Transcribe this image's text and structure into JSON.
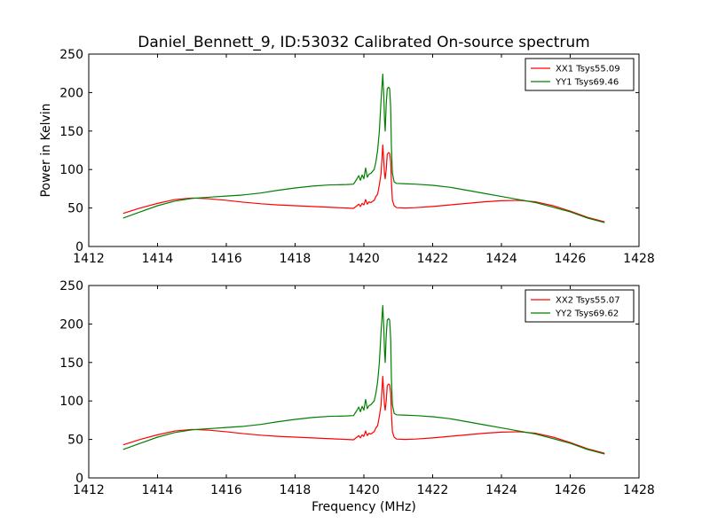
{
  "chart_data": [
    {
      "type": "line",
      "title": "Daniel_Bennett_9, ID:53032 Calibrated On-source spectrum",
      "xlabel": "",
      "ylabel": "Power in Kelvin",
      "xlim": [
        1412,
        1428
      ],
      "ylim": [
        0,
        250
      ],
      "xticks": [
        1412,
        1414,
        1416,
        1418,
        1420,
        1422,
        1424,
        1426,
        1428
      ],
      "yticks": [
        0,
        50,
        100,
        150,
        200,
        250
      ],
      "grid": false,
      "legend_position": "top-right",
      "series": [
        {
          "name": "XX1 Tsys55.09",
          "color": "#ff0000",
          "points": [
            [
              1413.0,
              43
            ],
            [
              1413.5,
              50
            ],
            [
              1414.0,
              56
            ],
            [
              1414.5,
              61
            ],
            [
              1415.0,
              63
            ],
            [
              1415.5,
              62
            ],
            [
              1416.0,
              60
            ],
            [
              1416.5,
              57.5
            ],
            [
              1417.0,
              55.5
            ],
            [
              1417.5,
              54
            ],
            [
              1418.0,
              53
            ],
            [
              1418.5,
              52
            ],
            [
              1419.0,
              51
            ],
            [
              1419.5,
              50
            ],
            [
              1419.7,
              49.5
            ],
            [
              1419.8,
              53
            ],
            [
              1419.85,
              55
            ],
            [
              1419.9,
              52
            ],
            [
              1419.95,
              56
            ],
            [
              1420.0,
              54
            ],
            [
              1420.05,
              61
            ],
            [
              1420.1,
              55
            ],
            [
              1420.15,
              58
            ],
            [
              1420.2,
              57
            ],
            [
              1420.3,
              60
            ],
            [
              1420.35,
              65
            ],
            [
              1420.4,
              68
            ],
            [
              1420.45,
              80
            ],
            [
              1420.5,
              95
            ],
            [
              1420.55,
              132
            ],
            [
              1420.58,
              110
            ],
            [
              1420.6,
              95
            ],
            [
              1420.62,
              88
            ],
            [
              1420.65,
              100
            ],
            [
              1420.68,
              120
            ],
            [
              1420.72,
              122
            ],
            [
              1420.75,
              121
            ],
            [
              1420.78,
              110
            ],
            [
              1420.8,
              85
            ],
            [
              1420.83,
              60
            ],
            [
              1420.88,
              53
            ],
            [
              1420.95,
              50.5
            ],
            [
              1421.2,
              50
            ],
            [
              1421.5,
              50.5
            ],
            [
              1422.0,
              52
            ],
            [
              1422.5,
              54
            ],
            [
              1423.0,
              56
            ],
            [
              1423.5,
              58
            ],
            [
              1424.0,
              59.5
            ],
            [
              1424.5,
              60
            ],
            [
              1425.0,
              58
            ],
            [
              1425.5,
              53
            ],
            [
              1426.0,
              46
            ],
            [
              1426.5,
              38
            ],
            [
              1427.0,
              32
            ]
          ]
        },
        {
          "name": "YY1 Tsys69.46",
          "color": "#008000",
          "points": [
            [
              1413.0,
              37
            ],
            [
              1413.5,
              45
            ],
            [
              1414.0,
              53
            ],
            [
              1414.5,
              59
            ],
            [
              1415.0,
              62.5
            ],
            [
              1415.5,
              64
            ],
            [
              1416.0,
              65.5
            ],
            [
              1416.5,
              67
            ],
            [
              1417.0,
              69.5
            ],
            [
              1417.5,
              73
            ],
            [
              1418.0,
              76
            ],
            [
              1418.5,
              78.5
            ],
            [
              1419.0,
              80
            ],
            [
              1419.5,
              80.5
            ],
            [
              1419.7,
              81
            ],
            [
              1419.8,
              88
            ],
            [
              1419.85,
              92
            ],
            [
              1419.9,
              86
            ],
            [
              1419.95,
              93
            ],
            [
              1420.0,
              88
            ],
            [
              1420.05,
              102
            ],
            [
              1420.1,
              90
            ],
            [
              1420.15,
              94
            ],
            [
              1420.2,
              95
            ],
            [
              1420.3,
              100
            ],
            [
              1420.35,
              110
            ],
            [
              1420.4,
              125
            ],
            [
              1420.45,
              150
            ],
            [
              1420.5,
              190
            ],
            [
              1420.55,
              224
            ],
            [
              1420.58,
              195
            ],
            [
              1420.6,
              165
            ],
            [
              1420.62,
              150
            ],
            [
              1420.65,
              185
            ],
            [
              1420.68,
              205
            ],
            [
              1420.72,
              207
            ],
            [
              1420.75,
              205
            ],
            [
              1420.78,
              180
            ],
            [
              1420.8,
              130
            ],
            [
              1420.83,
              95
            ],
            [
              1420.88,
              84
            ],
            [
              1420.95,
              82
            ],
            [
              1421.2,
              81.5
            ],
            [
              1421.5,
              81
            ],
            [
              1422.0,
              79.5
            ],
            [
              1422.5,
              77
            ],
            [
              1423.0,
              73
            ],
            [
              1423.5,
              69
            ],
            [
              1424.0,
              65
            ],
            [
              1424.5,
              61
            ],
            [
              1425.0,
              57
            ],
            [
              1425.5,
              51
            ],
            [
              1426.0,
              45
            ],
            [
              1426.5,
              37
            ],
            [
              1427.0,
              31
            ]
          ]
        }
      ]
    },
    {
      "type": "line",
      "title": "",
      "xlabel": "Frequency (MHz)",
      "ylabel": "",
      "xlim": [
        1412,
        1428
      ],
      "ylim": [
        0,
        250
      ],
      "xticks": [
        1412,
        1414,
        1416,
        1418,
        1420,
        1422,
        1424,
        1426,
        1428
      ],
      "yticks": [
        0,
        50,
        100,
        150,
        200,
        250
      ],
      "grid": false,
      "legend_position": "top-right",
      "series": [
        {
          "name": "XX2 Tsys55.07",
          "color": "#ff0000",
          "points": [
            [
              1413.0,
              43
            ],
            [
              1413.5,
              50
            ],
            [
              1414.0,
              56
            ],
            [
              1414.5,
              61
            ],
            [
              1415.0,
              63
            ],
            [
              1415.5,
              62
            ],
            [
              1416.0,
              60
            ],
            [
              1416.5,
              57.5
            ],
            [
              1417.0,
              55.5
            ],
            [
              1417.5,
              54
            ],
            [
              1418.0,
              53
            ],
            [
              1418.5,
              52
            ],
            [
              1419.0,
              51
            ],
            [
              1419.5,
              50
            ],
            [
              1419.7,
              49.5
            ],
            [
              1419.8,
              53
            ],
            [
              1419.85,
              55
            ],
            [
              1419.9,
              52
            ],
            [
              1419.95,
              56
            ],
            [
              1420.0,
              54
            ],
            [
              1420.05,
              61
            ],
            [
              1420.1,
              55
            ],
            [
              1420.15,
              58
            ],
            [
              1420.2,
              57
            ],
            [
              1420.3,
              60
            ],
            [
              1420.35,
              65
            ],
            [
              1420.4,
              68
            ],
            [
              1420.45,
              80
            ],
            [
              1420.5,
              95
            ],
            [
              1420.55,
              132
            ],
            [
              1420.58,
              110
            ],
            [
              1420.6,
              95
            ],
            [
              1420.62,
              88
            ],
            [
              1420.65,
              100
            ],
            [
              1420.68,
              120
            ],
            [
              1420.72,
              122
            ],
            [
              1420.75,
              121
            ],
            [
              1420.78,
              110
            ],
            [
              1420.8,
              85
            ],
            [
              1420.83,
              60
            ],
            [
              1420.88,
              53
            ],
            [
              1420.95,
              50.5
            ],
            [
              1421.2,
              50
            ],
            [
              1421.5,
              50.5
            ],
            [
              1422.0,
              52
            ],
            [
              1422.5,
              54
            ],
            [
              1423.0,
              56
            ],
            [
              1423.5,
              58
            ],
            [
              1424.0,
              59.5
            ],
            [
              1424.5,
              60
            ],
            [
              1425.0,
              58
            ],
            [
              1425.5,
              53
            ],
            [
              1426.0,
              46
            ],
            [
              1426.5,
              38
            ],
            [
              1427.0,
              32
            ]
          ]
        },
        {
          "name": "YY2 Tsys69.62",
          "color": "#008000",
          "points": [
            [
              1413.0,
              37
            ],
            [
              1413.5,
              45
            ],
            [
              1414.0,
              53
            ],
            [
              1414.5,
              59
            ],
            [
              1415.0,
              62.5
            ],
            [
              1415.5,
              64
            ],
            [
              1416.0,
              65.5
            ],
            [
              1416.5,
              67
            ],
            [
              1417.0,
              69.5
            ],
            [
              1417.5,
              73
            ],
            [
              1418.0,
              76
            ],
            [
              1418.5,
              78.5
            ],
            [
              1419.0,
              80
            ],
            [
              1419.5,
              80.5
            ],
            [
              1419.7,
              81
            ],
            [
              1419.8,
              88
            ],
            [
              1419.85,
              92
            ],
            [
              1419.9,
              86
            ],
            [
              1419.95,
              93
            ],
            [
              1420.0,
              88
            ],
            [
              1420.05,
              102
            ],
            [
              1420.1,
              90
            ],
            [
              1420.15,
              94
            ],
            [
              1420.2,
              95
            ],
            [
              1420.3,
              100
            ],
            [
              1420.35,
              110
            ],
            [
              1420.4,
              125
            ],
            [
              1420.45,
              150
            ],
            [
              1420.5,
              190
            ],
            [
              1420.55,
              224
            ],
            [
              1420.58,
              195
            ],
            [
              1420.6,
              165
            ],
            [
              1420.62,
              150
            ],
            [
              1420.65,
              185
            ],
            [
              1420.68,
              205
            ],
            [
              1420.72,
              207
            ],
            [
              1420.75,
              205
            ],
            [
              1420.78,
              180
            ],
            [
              1420.8,
              130
            ],
            [
              1420.83,
              95
            ],
            [
              1420.88,
              84
            ],
            [
              1420.95,
              82
            ],
            [
              1421.2,
              81.5
            ],
            [
              1421.5,
              81
            ],
            [
              1422.0,
              79.5
            ],
            [
              1422.5,
              77
            ],
            [
              1423.0,
              73
            ],
            [
              1423.5,
              69
            ],
            [
              1424.0,
              65
            ],
            [
              1424.5,
              61
            ],
            [
              1425.0,
              57
            ],
            [
              1425.5,
              51
            ],
            [
              1426.0,
              45
            ],
            [
              1426.5,
              37
            ],
            [
              1427.0,
              31
            ]
          ]
        }
      ]
    }
  ]
}
